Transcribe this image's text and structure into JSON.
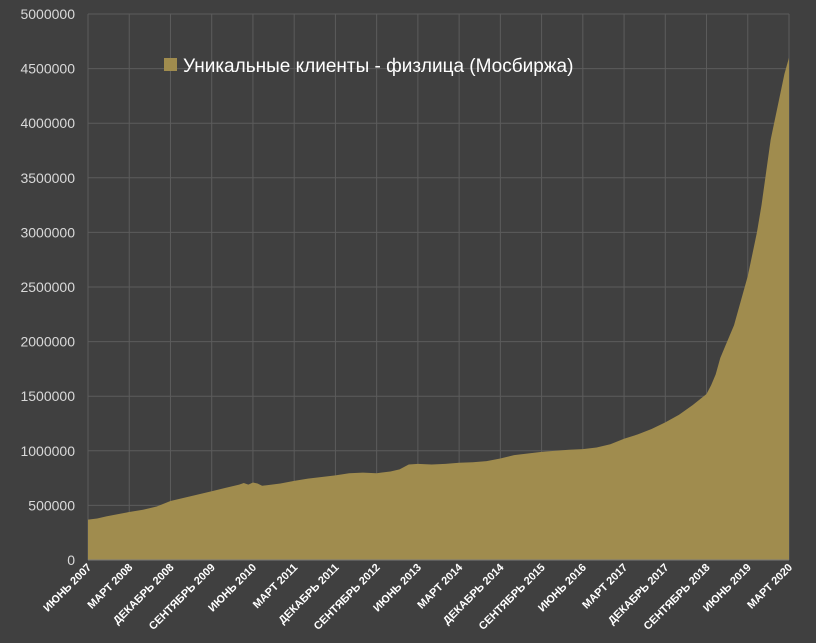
{
  "chart_data": {
    "type": "area",
    "title": "",
    "xlabel": "",
    "ylabel": "",
    "ylim": [
      0,
      5000000
    ],
    "yticks": [
      0,
      500000,
      1000000,
      1500000,
      2000000,
      2500000,
      3000000,
      3500000,
      4000000,
      4500000,
      5000000
    ],
    "xtick_labels": [
      "ИЮНЬ 2007",
      "МАРТ 2008",
      "ДЕКАБРЬ 2008",
      "СЕНТЯБРЬ 2009",
      "ИЮНЬ 2010",
      "МАРТ 2011",
      "ДЕКАБРЬ 2011",
      "СЕНТЯБРЬ 2012",
      "ИЮНЬ 2013",
      "МАРТ 2014",
      "ДЕКАБРЬ 2014",
      "СЕНТЯБРЬ 2015",
      "ИЮНЬ 2016",
      "МАРТ 2017",
      "ДЕКАБРЬ 2017",
      "СЕНТЯБРЬ 2018",
      "ИЮНЬ 2019",
      "МАРТ 2020"
    ],
    "grid": true,
    "legend_position": "top-left",
    "series": [
      {
        "name": "Уникальные клиенты - физлица (Мосбиржа)",
        "color": "#a08c4e",
        "points": [
          [
            "2007-06",
            370000
          ],
          [
            "2007-08",
            380000
          ],
          [
            "2007-10",
            400000
          ],
          [
            "2007-12",
            415000
          ],
          [
            "2008-03",
            440000
          ],
          [
            "2008-06",
            460000
          ],
          [
            "2008-09",
            490000
          ],
          [
            "2008-12",
            540000
          ],
          [
            "2009-03",
            570000
          ],
          [
            "2009-06",
            600000
          ],
          [
            "2009-09",
            630000
          ],
          [
            "2009-12",
            660000
          ],
          [
            "2010-03",
            690000
          ],
          [
            "2010-04",
            705000
          ],
          [
            "2010-05",
            690000
          ],
          [
            "2010-06",
            710000
          ],
          [
            "2010-07",
            700000
          ],
          [
            "2010-08",
            680000
          ],
          [
            "2010-09",
            685000
          ],
          [
            "2010-12",
            700000
          ],
          [
            "2011-03",
            725000
          ],
          [
            "2011-06",
            745000
          ],
          [
            "2011-09",
            760000
          ],
          [
            "2011-12",
            775000
          ],
          [
            "2012-03",
            795000
          ],
          [
            "2012-06",
            800000
          ],
          [
            "2012-09",
            795000
          ],
          [
            "2012-12",
            810000
          ],
          [
            "2013-02",
            830000
          ],
          [
            "2013-04",
            875000
          ],
          [
            "2013-06",
            880000
          ],
          [
            "2013-09",
            875000
          ],
          [
            "2013-12",
            880000
          ],
          [
            "2014-03",
            890000
          ],
          [
            "2014-06",
            895000
          ],
          [
            "2014-09",
            905000
          ],
          [
            "2014-12",
            930000
          ],
          [
            "2015-03",
            960000
          ],
          [
            "2015-06",
            975000
          ],
          [
            "2015-09",
            990000
          ],
          [
            "2015-12",
            1000000
          ],
          [
            "2016-03",
            1010000
          ],
          [
            "2016-06",
            1015000
          ],
          [
            "2016-09",
            1030000
          ],
          [
            "2016-12",
            1060000
          ],
          [
            "2017-03",
            1110000
          ],
          [
            "2017-06",
            1150000
          ],
          [
            "2017-09",
            1200000
          ],
          [
            "2017-12",
            1260000
          ],
          [
            "2018-03",
            1330000
          ],
          [
            "2018-06",
            1420000
          ],
          [
            "2018-09",
            1520000
          ],
          [
            "2018-10",
            1600000
          ],
          [
            "2018-11",
            1700000
          ],
          [
            "2018-12",
            1850000
          ],
          [
            "2019-01",
            1950000
          ],
          [
            "2019-02",
            2050000
          ],
          [
            "2019-03",
            2150000
          ],
          [
            "2019-04",
            2300000
          ],
          [
            "2019-05",
            2450000
          ],
          [
            "2019-06",
            2600000
          ],
          [
            "2019-07",
            2800000
          ],
          [
            "2019-08",
            3000000
          ],
          [
            "2019-09",
            3250000
          ],
          [
            "2019-10",
            3550000
          ],
          [
            "2019-11",
            3850000
          ],
          [
            "2019-12",
            4050000
          ],
          [
            "2020-01",
            4250000
          ],
          [
            "2020-02",
            4450000
          ],
          [
            "2020-03",
            4600000
          ]
        ]
      }
    ]
  }
}
